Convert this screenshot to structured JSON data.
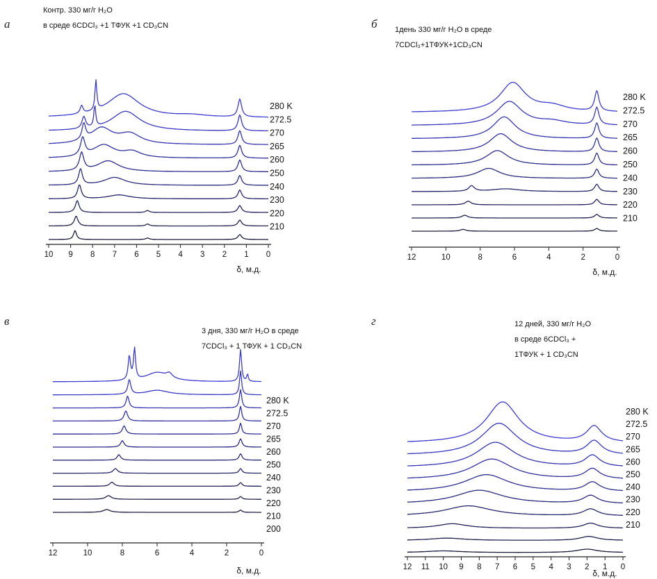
{
  "colors": {
    "high_temp": "#3a3ad0",
    "low_temp": "#1a1a3a",
    "axis": "#222222"
  },
  "chart_data": [
    {
      "type": "line",
      "panel": "а",
      "title_lines": [
        "Контр. 330 мг/г H₂O",
        "в среде 6CDCl₃ +1 ТФУК +1 CD₃CN"
      ],
      "xlabel": "δ, м.д.",
      "xlim": [
        10,
        0
      ],
      "x_reversed": true,
      "xticks": [
        "10",
        "9",
        "8",
        "7",
        "6",
        "5",
        "4",
        "3",
        "2",
        "1",
        "0"
      ],
      "series_labels": [
        "280 K",
        "272.5",
        "270",
        "265",
        "260",
        "250",
        "240",
        "230",
        "220",
        "210"
      ],
      "series": [
        {
          "name": "280 K",
          "peaks": [
            [
              8.5,
              0.8,
              0.08
            ],
            [
              7.85,
              3.0,
              0.05
            ],
            [
              6.6,
              2.4,
              0.9
            ],
            [
              1.3,
              1.8,
              0.1
            ],
            [
              3.5,
              0.2,
              0.8
            ]
          ]
        },
        {
          "name": "272.5",
          "peaks": [
            [
              8.4,
              1.2,
              0.1
            ],
            [
              7.9,
              2.2,
              0.05
            ],
            [
              6.5,
              2.0,
              0.8
            ],
            [
              1.3,
              1.6,
              0.1
            ]
          ]
        },
        {
          "name": "270",
          "peaks": [
            [
              8.4,
              1.6,
              0.1
            ],
            [
              7.6,
              1.6,
              0.6
            ],
            [
              6.3,
              1.0,
              0.6
            ],
            [
              1.3,
              1.4,
              0.1
            ]
          ]
        },
        {
          "name": "265",
          "peaks": [
            [
              8.45,
              1.8,
              0.12
            ],
            [
              7.5,
              1.3,
              0.6
            ],
            [
              6.2,
              0.6,
              0.5
            ],
            [
              1.3,
              1.3,
              0.1
            ]
          ]
        },
        {
          "name": "260",
          "peaks": [
            [
              8.5,
              1.8,
              0.12
            ],
            [
              7.3,
              1.1,
              0.6
            ],
            [
              1.3,
              1.2,
              0.1
            ]
          ]
        },
        {
          "name": "250",
          "peaks": [
            [
              8.55,
              1.6,
              0.1
            ],
            [
              7.0,
              0.8,
              0.6
            ],
            [
              1.3,
              1.0,
              0.1
            ]
          ]
        },
        {
          "name": "240",
          "peaks": [
            [
              8.6,
              1.4,
              0.1
            ],
            [
              6.8,
              0.4,
              0.6
            ],
            [
              1.3,
              0.9,
              0.1
            ]
          ]
        },
        {
          "name": "230",
          "peaks": [
            [
              8.7,
              1.2,
              0.1
            ],
            [
              5.5,
              0.2,
              0.1
            ],
            [
              1.3,
              0.7,
              0.1
            ]
          ]
        },
        {
          "name": "220",
          "peaks": [
            [
              8.75,
              1.0,
              0.1
            ],
            [
              5.5,
              0.2,
              0.1
            ],
            [
              1.3,
              0.6,
              0.1
            ]
          ]
        },
        {
          "name": "210",
          "peaks": [
            [
              8.8,
              0.9,
              0.08
            ],
            [
              5.5,
              0.15,
              0.1
            ],
            [
              1.3,
              0.5,
              0.1
            ]
          ]
        }
      ]
    },
    {
      "type": "line",
      "panel": "б",
      "title_lines": [
        "1день 330 мг/г H₂O в среде",
        "7CDCl₃+1ТФУК+1CD₃CN"
      ],
      "xlabel": "δ, м.д.",
      "xlim": [
        12,
        0
      ],
      "x_reversed": true,
      "xticks": [
        "12",
        "10",
        "8",
        "6",
        "4",
        "2",
        "0"
      ],
      "series_labels": [
        "280 K",
        "272.5",
        "270",
        "265",
        "260",
        "250",
        "240",
        "230",
        "220",
        "210"
      ],
      "series": [
        {
          "name": "280 K",
          "peaks": [
            [
              6.1,
              3.2,
              0.9
            ],
            [
              3.8,
              0.6,
              1.0
            ],
            [
              1.2,
              2.2,
              0.15
            ]
          ]
        },
        {
          "name": "272.5",
          "peaks": [
            [
              6.3,
              2.6,
              0.9
            ],
            [
              3.8,
              0.4,
              1.0
            ],
            [
              1.2,
              1.9,
              0.15
            ]
          ]
        },
        {
          "name": "270",
          "peaks": [
            [
              6.6,
              2.4,
              0.8
            ],
            [
              1.2,
              1.7,
              0.15
            ]
          ]
        },
        {
          "name": "265",
          "peaks": [
            [
              6.8,
              2.0,
              0.8
            ],
            [
              1.2,
              1.5,
              0.15
            ]
          ]
        },
        {
          "name": "260",
          "peaks": [
            [
              7.0,
              1.6,
              0.8
            ],
            [
              1.2,
              1.3,
              0.15
            ]
          ]
        },
        {
          "name": "250",
          "peaks": [
            [
              7.5,
              1.1,
              0.8
            ],
            [
              1.2,
              1.0,
              0.15
            ]
          ]
        },
        {
          "name": "240",
          "peaks": [
            [
              8.5,
              0.6,
              0.2
            ],
            [
              6.5,
              0.3,
              1.0
            ],
            [
              1.2,
              0.8,
              0.15
            ]
          ]
        },
        {
          "name": "230",
          "peaks": [
            [
              8.7,
              0.4,
              0.2
            ],
            [
              1.2,
              0.6,
              0.15
            ]
          ]
        },
        {
          "name": "220",
          "peaks": [
            [
              8.9,
              0.3,
              0.2
            ],
            [
              1.2,
              0.4,
              0.15
            ]
          ]
        },
        {
          "name": "210",
          "peaks": [
            [
              9.0,
              0.2,
              0.2
            ],
            [
              1.2,
              0.3,
              0.15
            ]
          ]
        }
      ]
    },
    {
      "type": "line",
      "panel": "в",
      "title_lines": [
        "3 дня, 330 мг/г H₂O в среде",
        "7CDCl₃ + 1 ТФУК + 1 CD₃CN"
      ],
      "xlabel": "δ, м.д.",
      "xlim": [
        12,
        0
      ],
      "x_reversed": true,
      "xticks": [
        "12",
        "10",
        "8",
        "6",
        "4",
        "2",
        "0"
      ],
      "series_labels": [
        "280 K",
        "272.5",
        "270",
        "265",
        "260",
        "250",
        "240",
        "230",
        "220",
        "210",
        "200"
      ],
      "series": [
        {
          "name": "280 K",
          "peaks": [
            [
              7.6,
              2.6,
              0.08
            ],
            [
              7.3,
              3.4,
              0.07
            ],
            [
              6.0,
              1.0,
              0.8
            ],
            [
              5.3,
              0.5,
              0.2
            ],
            [
              1.2,
              3.5,
              0.07
            ],
            [
              0.8,
              0.8,
              0.05
            ]
          ]
        },
        {
          "name": "272.5",
          "peaks": [
            [
              7.6,
              1.6,
              0.1
            ],
            [
              6.0,
              0.5,
              0.8
            ],
            [
              1.2,
              2.6,
              0.07
            ]
          ]
        },
        {
          "name": "270",
          "peaks": [
            [
              7.7,
              1.3,
              0.1
            ],
            [
              1.2,
              2.0,
              0.08
            ]
          ]
        },
        {
          "name": "265",
          "peaks": [
            [
              7.8,
              1.1,
              0.12
            ],
            [
              1.2,
              1.6,
              0.08
            ]
          ]
        },
        {
          "name": "260",
          "peaks": [
            [
              7.9,
              0.9,
              0.12
            ],
            [
              1.2,
              1.2,
              0.08
            ]
          ]
        },
        {
          "name": "250",
          "peaks": [
            [
              8.0,
              0.7,
              0.12
            ],
            [
              1.2,
              0.9,
              0.1
            ]
          ]
        },
        {
          "name": "240",
          "peaks": [
            [
              8.2,
              0.6,
              0.12
            ],
            [
              1.2,
              0.7,
              0.1
            ]
          ]
        },
        {
          "name": "230",
          "peaks": [
            [
              8.4,
              0.5,
              0.15
            ],
            [
              1.2,
              0.5,
              0.1
            ]
          ]
        },
        {
          "name": "220",
          "peaks": [
            [
              8.6,
              0.45,
              0.15
            ],
            [
              1.2,
              0.4,
              0.1
            ]
          ]
        },
        {
          "name": "210",
          "peaks": [
            [
              8.8,
              0.4,
              0.2
            ],
            [
              1.2,
              0.3,
              0.1
            ]
          ]
        },
        {
          "name": "200",
          "peaks": [
            [
              8.9,
              0.3,
              0.25
            ],
            [
              1.2,
              0.25,
              0.1
            ]
          ]
        }
      ]
    },
    {
      "type": "line",
      "panel": "г",
      "title_lines": [
        "12 дней, 330 мг/г H₂O",
        "в среде 6CDCl₃ +",
        "1ТФУК + 1 CD₃CN"
      ],
      "xlabel": "δ, м.д.",
      "xlim": [
        12,
        0
      ],
      "x_reversed": true,
      "xticks": [
        "12",
        "11",
        "10",
        "9",
        "8",
        "7",
        "6",
        "5",
        "4",
        "3",
        "2",
        "1",
        "0"
      ],
      "series_labels": [
        "280 K",
        "272.5",
        "270",
        "265",
        "260",
        "250",
        "240",
        "230",
        "220",
        "210"
      ],
      "series": [
        {
          "name": "280 K",
          "peaks": [
            [
              6.7,
              3.6,
              1.1
            ],
            [
              1.6,
              1.4,
              0.5
            ]
          ]
        },
        {
          "name": "272.5",
          "peaks": [
            [
              6.9,
              2.8,
              1.2
            ],
            [
              1.6,
              1.2,
              0.5
            ]
          ]
        },
        {
          "name": "270",
          "peaks": [
            [
              7.1,
              2.2,
              1.3
            ],
            [
              1.7,
              1.0,
              0.5
            ]
          ]
        },
        {
          "name": "265",
          "peaks": [
            [
              7.3,
              1.8,
              1.4
            ],
            [
              1.7,
              0.9,
              0.5
            ]
          ]
        },
        {
          "name": "260",
          "peaks": [
            [
              7.6,
              1.5,
              1.5
            ],
            [
              1.7,
              0.8,
              0.5
            ]
          ]
        },
        {
          "name": "250",
          "peaks": [
            [
              8.0,
              1.2,
              1.6
            ],
            [
              1.8,
              0.7,
              0.5
            ]
          ]
        },
        {
          "name": "240",
          "peaks": [
            [
              8.6,
              0.9,
              1.6
            ],
            [
              1.8,
              0.6,
              0.5
            ]
          ]
        },
        {
          "name": "230",
          "peaks": [
            [
              9.5,
              0.4,
              1.0
            ],
            [
              1.8,
              0.45,
              0.5
            ]
          ]
        },
        {
          "name": "220",
          "peaks": [
            [
              9.8,
              0.2,
              1.2
            ],
            [
              1.9,
              0.35,
              0.6
            ]
          ]
        },
        {
          "name": "210",
          "peaks": [
            [
              10.0,
              0.15,
              1.2
            ],
            [
              2.0,
              0.3,
              0.7
            ]
          ]
        }
      ]
    }
  ]
}
